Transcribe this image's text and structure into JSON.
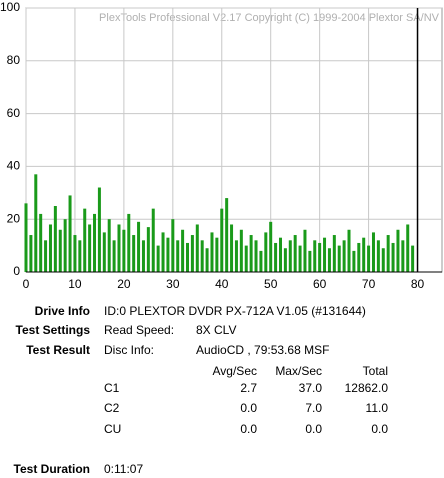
{
  "chart_data": {
    "type": "bar",
    "watermark": "PlexTools Professional V2.17 Copyright (C) 1999-2004 Plextor SA/NV",
    "x": [
      0,
      1,
      2,
      3,
      4,
      5,
      6,
      7,
      8,
      9,
      10,
      11,
      12,
      13,
      14,
      15,
      16,
      17,
      18,
      19,
      20,
      21,
      22,
      23,
      24,
      25,
      26,
      27,
      28,
      29,
      30,
      31,
      32,
      33,
      34,
      35,
      36,
      37,
      38,
      39,
      40,
      41,
      42,
      43,
      44,
      45,
      46,
      47,
      48,
      49,
      50,
      51,
      52,
      53,
      54,
      55,
      56,
      57,
      58,
      59,
      60,
      61,
      62,
      63,
      64,
      65,
      66,
      67,
      68,
      69,
      70,
      71,
      72,
      73,
      74,
      75,
      76,
      77,
      78,
      79
    ],
    "values": [
      26,
      14,
      37,
      22,
      12,
      18,
      25,
      16,
      20,
      29,
      14,
      12,
      24,
      18,
      22,
      32,
      15,
      20,
      12,
      18,
      16,
      22,
      14,
      19,
      12,
      17,
      24,
      10,
      15,
      13,
      20,
      12,
      16,
      11,
      14,
      18,
      12,
      9,
      15,
      13,
      24,
      28,
      18,
      12,
      16,
      10,
      14,
      12,
      8,
      15,
      19,
      11,
      13,
      9,
      12,
      14,
      10,
      16,
      8,
      12,
      11,
      13,
      9,
      14,
      10,
      12,
      16,
      8,
      11,
      13,
      10,
      15,
      12,
      9,
      14,
      11,
      16,
      12,
      18,
      10
    ],
    "color": "#1a9a1a",
    "marker_x": 80,
    "xlim": [
      0,
      85
    ],
    "xticks": [
      0,
      10,
      20,
      30,
      40,
      50,
      60,
      70,
      80
    ],
    "ylim": [
      0,
      100
    ],
    "yticks": [
      0,
      20,
      40,
      60,
      80,
      100
    ],
    "grid": true
  },
  "report": {
    "drive_info": {
      "label": "Drive Info",
      "value": "ID:0 PLEXTOR DVDR PX-712A V1.05 (#131644)"
    },
    "test_settings": {
      "label": "Test Settings",
      "key": "Read Speed:",
      "value": "8X CLV"
    },
    "test_result": {
      "label": "Test Result",
      "key": "Disc Info:",
      "value": "AudioCD , 79:53.68 MSF"
    },
    "table": {
      "header": [
        "Avg/Sec",
        "Max/Sec",
        "Total"
      ],
      "rows": [
        [
          "C1",
          "2.7",
          "37.0",
          "12862.0"
        ],
        [
          "C2",
          "0.0",
          "7.0",
          "11.0"
        ],
        [
          "CU",
          "0.0",
          "0.0",
          "0.0"
        ]
      ]
    },
    "test_duration": {
      "label": "Test Duration",
      "value": "0:11:07"
    }
  }
}
